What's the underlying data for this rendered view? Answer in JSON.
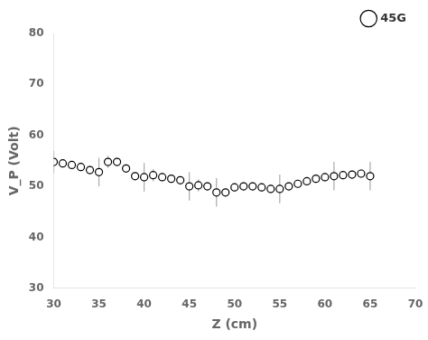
{
  "chart_data": {
    "type": "scatter",
    "x": [
      30,
      31,
      32,
      33,
      34,
      35,
      36,
      37,
      38,
      39,
      40,
      41,
      42,
      43,
      44,
      45,
      46,
      47,
      48,
      49,
      50,
      51,
      52,
      53,
      54,
      55,
      56,
      57,
      58,
      59,
      60,
      61,
      62,
      63,
      64,
      65
    ],
    "series": [
      {
        "name": "45G",
        "color": "black",
        "marker": "o",
        "values": [
          54.8,
          54.5,
          54.2,
          53.8,
          53.2,
          52.8,
          54.8,
          54.8,
          53.5,
          52.0,
          51.8,
          52.2,
          51.8,
          51.5,
          51.2,
          50.0,
          50.2,
          50.0,
          48.8,
          48.8,
          49.8,
          50.0,
          50.0,
          49.8,
          49.5,
          49.5,
          50.0,
          50.5,
          51.0,
          51.5,
          51.8,
          52.0,
          52.2,
          52.3,
          52.5,
          52.0
        ],
        "yerr": [
          2.2,
          0.8,
          0.8,
          0.8,
          0.8,
          2.8,
          1.2,
          0.8,
          0.8,
          0.8,
          2.8,
          1.2,
          0.8,
          0.8,
          0.8,
          2.8,
          1.2,
          0.8,
          2.8,
          0.8,
          0.8,
          0.8,
          0.8,
          0.8,
          0.8,
          2.8,
          0.8,
          0.8,
          0.8,
          0.8,
          0.8,
          2.8,
          0.8,
          0.8,
          0.8,
          2.8
        ]
      }
    ],
    "xlabel": "Z (cm)",
    "ylabel": "V_P (Volt)",
    "xlim": [
      30,
      70
    ],
    "ylim": [
      30,
      80
    ],
    "xticks": [
      30,
      35,
      40,
      45,
      50,
      55,
      60,
      65,
      70
    ],
    "yticks": [
      30,
      40,
      50,
      60,
      70,
      80
    ],
    "grid": false,
    "legend": "upper right"
  }
}
